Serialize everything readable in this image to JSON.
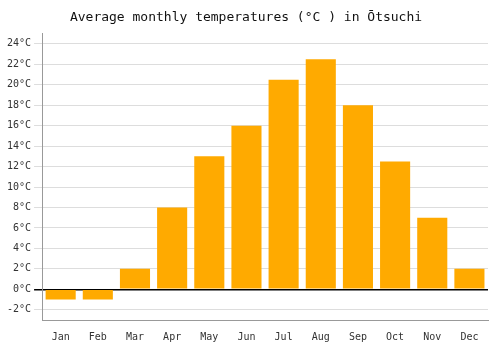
{
  "chart_data": {
    "type": "bar",
    "title": "Average monthly temperatures (°C ) in Ōtsuchi",
    "categories": [
      "Jan",
      "Feb",
      "Mar",
      "Apr",
      "May",
      "Jun",
      "Jul",
      "Aug",
      "Sep",
      "Oct",
      "Nov",
      "Dec"
    ],
    "values": [
      -1,
      -1,
      2,
      8,
      13,
      16,
      20.5,
      22.5,
      18,
      12.5,
      7,
      2
    ],
    "color": "#FFAA00",
    "ylim": [
      -3,
      25
    ],
    "yticks": [
      {
        "value": -2,
        "label": "-2°C"
      },
      {
        "value": 0,
        "label": "0°C"
      },
      {
        "value": 2,
        "label": "2°C"
      },
      {
        "value": 4,
        "label": "4°C"
      },
      {
        "value": 6,
        "label": "6°C"
      },
      {
        "value": 8,
        "label": "8°C"
      },
      {
        "value": 10,
        "label": "10°C"
      },
      {
        "value": 12,
        "label": "12°C"
      },
      {
        "value": 14,
        "label": "14°C"
      },
      {
        "value": 16,
        "label": "16°C"
      },
      {
        "value": 18,
        "label": "18°C"
      },
      {
        "value": 20,
        "label": "20°C"
      },
      {
        "value": 22,
        "label": "22°C"
      },
      {
        "value": 24,
        "label": "24°C"
      }
    ],
    "grid": true
  }
}
